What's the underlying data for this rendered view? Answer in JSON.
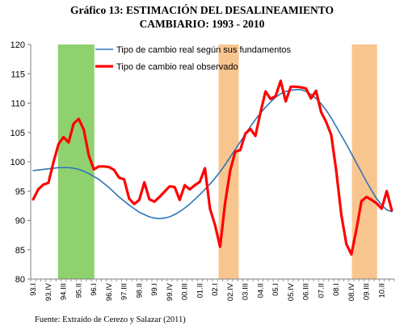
{
  "title_line1": "Gráfico 13: ESTIMACIÓN DEL DESALINEAMIENTO",
  "title_line2": "CAMBIARIO: 1993 - 2010",
  "source": "Fuente: Extraído de Cerezo y Salazar (2011)",
  "chart_data": {
    "type": "line",
    "ylim": [
      80,
      120
    ],
    "y_ticks": [
      80,
      85,
      90,
      95,
      100,
      105,
      110,
      115,
      120
    ],
    "grid": false,
    "legend_position": "top",
    "n_periods": 72,
    "x_tick_labels": [
      {
        "i": 0,
        "label": "93.I"
      },
      {
        "i": 3,
        "label": "93.IV"
      },
      {
        "i": 6,
        "label": "94.III"
      },
      {
        "i": 9,
        "label": "95.II"
      },
      {
        "i": 12,
        "label": "96.I"
      },
      {
        "i": 15,
        "label": "96.IV"
      },
      {
        "i": 18,
        "label": "97.III"
      },
      {
        "i": 21,
        "label": "98.II"
      },
      {
        "i": 24,
        "label": "99.I"
      },
      {
        "i": 27,
        "label": "99.IV"
      },
      {
        "i": 30,
        "label": "00.III"
      },
      {
        "i": 33,
        "label": "01.II"
      },
      {
        "i": 36,
        "label": "02.I"
      },
      {
        "i": 39,
        "label": "02.IV"
      },
      {
        "i": 42,
        "label": "03.III"
      },
      {
        "i": 45,
        "label": "04.II"
      },
      {
        "i": 48,
        "label": "05.I"
      },
      {
        "i": 51,
        "label": "05.IV"
      },
      {
        "i": 54,
        "label": "06.III"
      },
      {
        "i": 57,
        "label": "07.II"
      },
      {
        "i": 60,
        "label": "08.I"
      },
      {
        "i": 63,
        "label": "08.IV"
      },
      {
        "i": 66,
        "label": "09.III"
      },
      {
        "i": 69,
        "label": "10.II"
      }
    ],
    "shaded_periods": [
      {
        "start": 5.4,
        "end": 12.6,
        "color": "#8fd16f"
      },
      {
        "start": 37.2,
        "end": 41.2,
        "color": "#f9c58f"
      },
      {
        "start": 63.6,
        "end": 68.6,
        "color": "#f9c58f"
      }
    ],
    "series": [
      {
        "name": "Tipo de cambio real según sus fundamentos",
        "color": "#2e75b6",
        "values": [
          98.5,
          98.6,
          98.7,
          98.8,
          98.9,
          99.0,
          99.0,
          99.0,
          98.9,
          98.7,
          98.4,
          98.0,
          97.5,
          97.0,
          96.3,
          95.6,
          94.8,
          94.0,
          93.3,
          92.6,
          92.0,
          91.4,
          91.0,
          90.6,
          90.4,
          90.3,
          90.4,
          90.6,
          91.0,
          91.5,
          92.1,
          92.8,
          93.6,
          94.4,
          95.3,
          96.2,
          97.2,
          98.3,
          99.5,
          100.8,
          102.1,
          103.4,
          104.7,
          106.0,
          107.2,
          108.3,
          109.3,
          110.2,
          111.0,
          111.6,
          112.0,
          112.2,
          112.3,
          112.3,
          112.0,
          111.5,
          110.8,
          109.9,
          108.8,
          107.5,
          106.0,
          104.5,
          103.0,
          101.4,
          99.8,
          98.2,
          96.6,
          95.1,
          93.7,
          92.6,
          91.8,
          91.5
        ]
      },
      {
        "name": "Tipo de cambio real observado",
        "color": "#ff0000",
        "values": [
          93.6,
          95.3,
          96.1,
          96.4,
          99.9,
          103.0,
          104.2,
          103.3,
          106.5,
          107.3,
          105.5,
          101.1,
          98.7,
          99.2,
          99.2,
          99.1,
          98.6,
          97.3,
          97.0,
          93.7,
          92.8,
          93.5,
          96.5,
          93.6,
          93.2,
          94.0,
          94.9,
          95.8,
          95.7,
          93.5,
          96.0,
          95.3,
          96.0,
          96.6,
          98.9,
          92.0,
          89.2,
          85.5,
          93.0,
          98.5,
          101.7,
          102.0,
          104.8,
          105.6,
          104.4,
          108.4,
          112.0,
          110.7,
          111.2,
          113.8,
          110.3,
          112.8,
          112.8,
          112.7,
          112.5,
          110.8,
          112.1,
          108.5,
          106.8,
          104.6,
          98.5,
          91.0,
          86.0,
          84.2,
          88.5,
          93.3,
          94.0,
          93.5,
          92.9,
          92.0,
          95.0,
          91.7
        ]
      }
    ]
  }
}
